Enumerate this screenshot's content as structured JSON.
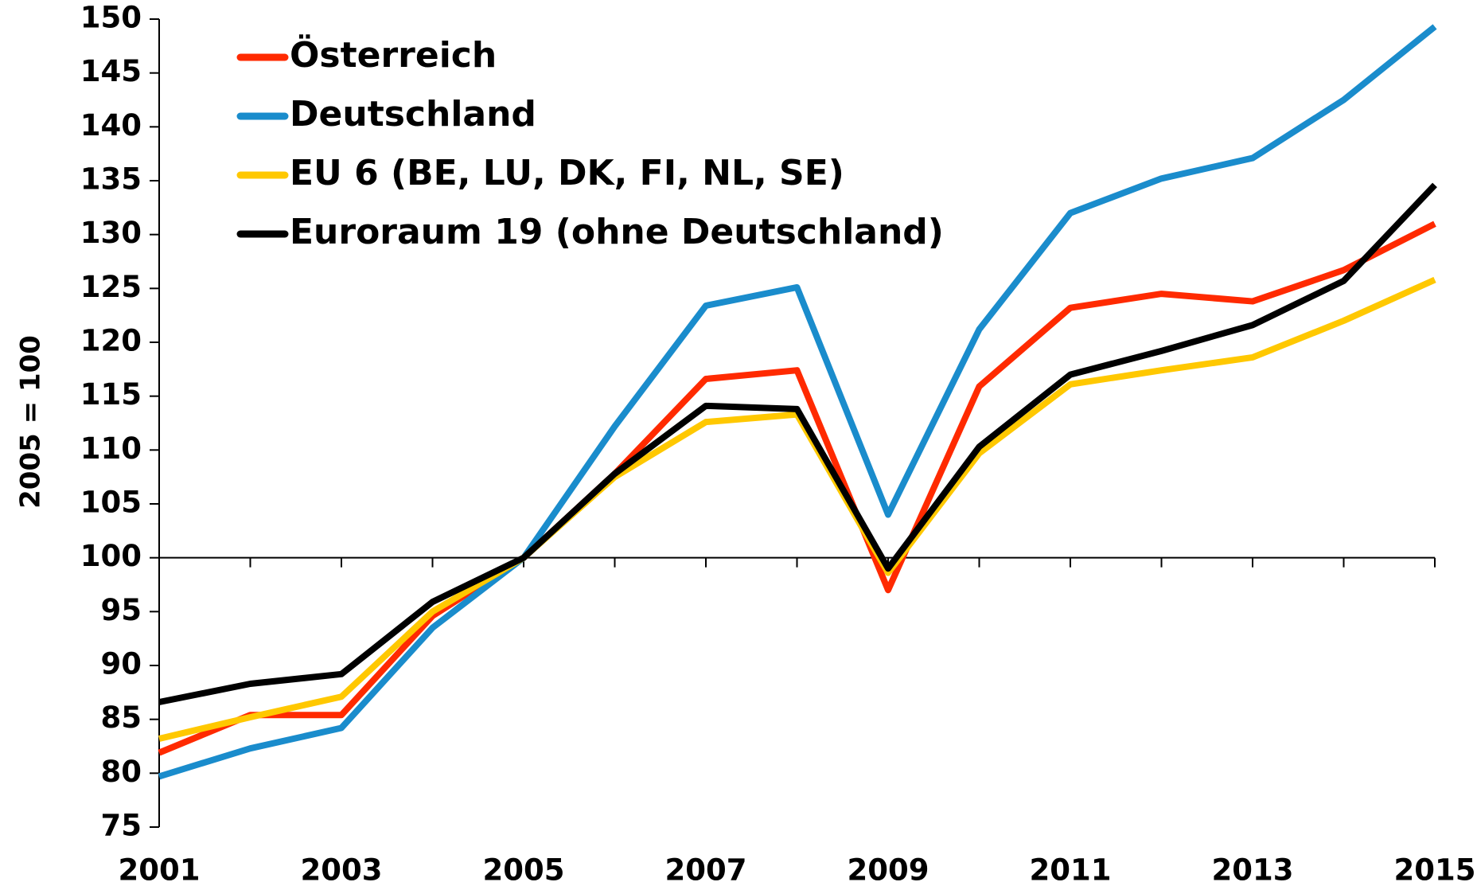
{
  "chart_data": {
    "type": "line",
    "y_label": "2005 = 100",
    "categories": [
      2001,
      null,
      2003,
      null,
      2005,
      null,
      2007,
      null,
      2009,
      null,
      2011,
      null,
      2013,
      null,
      2015
    ],
    "ylim": [
      75,
      150
    ],
    "yticks": [
      75,
      80,
      85,
      90,
      95,
      100,
      105,
      110,
      115,
      120,
      125,
      130,
      135,
      140,
      145,
      150
    ],
    "axis_crossing": 100,
    "legend": "upper left",
    "series": [
      {
        "name": "Österreich",
        "color": "#ff2a00",
        "values": [
          81.9,
          85.4,
          85.4,
          94.6,
          100,
          107.8,
          116.6,
          117.4,
          97.0,
          115.9,
          123.2,
          124.5,
          123.8,
          126.7,
          131.0
        ]
      },
      {
        "name": "Deutschland",
        "color": "#1a8ccc",
        "values": [
          79.7,
          82.3,
          84.2,
          93.5,
          100,
          112.2,
          123.4,
          125.1,
          104.0,
          121.2,
          132.0,
          135.2,
          137.1,
          142.5,
          149.3
        ]
      },
      {
        "name": "EU 6 (BE, LU, DK, FI, NL, SE)",
        "color": "#ffc800",
        "values": [
          83.2,
          85.2,
          87.1,
          95.0,
          100,
          107.5,
          112.6,
          113.3,
          98.6,
          109.7,
          116.1,
          117.4,
          118.6,
          122.0,
          125.8
        ]
      },
      {
        "name": "Euroraum 19 (ohne Deutschland)",
        "color": "#000000",
        "values": [
          86.6,
          88.3,
          89.2,
          95.9,
          100,
          107.8,
          114.1,
          113.8,
          99.0,
          110.3,
          117.0,
          119.2,
          121.6,
          125.7,
          134.6
        ]
      }
    ]
  }
}
